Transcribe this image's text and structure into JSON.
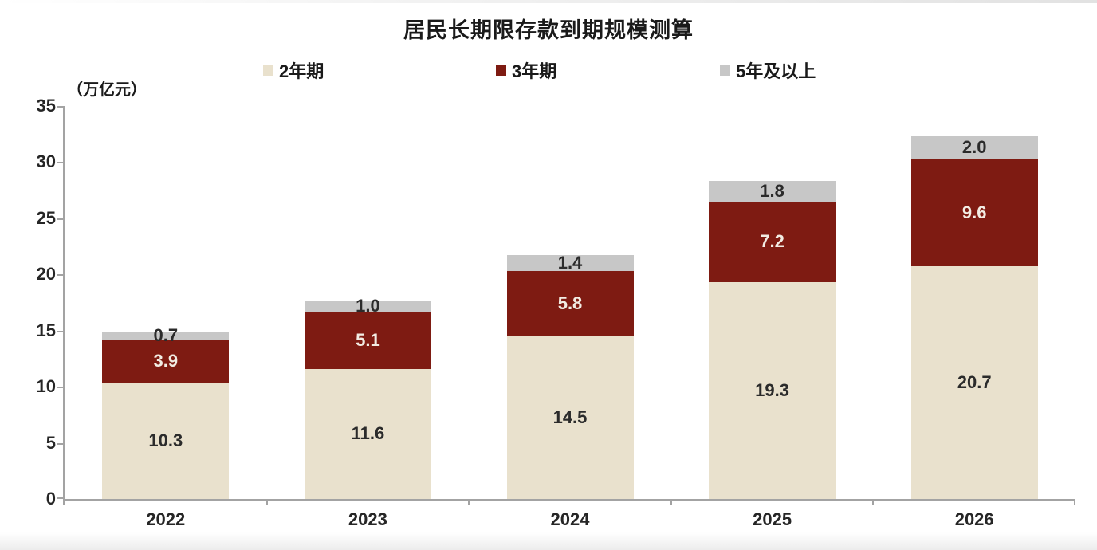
{
  "chart_data": {
    "type": "bar",
    "stacked": true,
    "title": "居民长期限存款到期规模测算",
    "unit_label": "（万亿元）",
    "categories": [
      "2022",
      "2023",
      "2024",
      "2025",
      "2026"
    ],
    "series": [
      {
        "name": "2年期",
        "color": "#E9E1CD",
        "label_color": "#2b2b2b",
        "values": [
          10.3,
          11.6,
          14.5,
          19.3,
          20.7
        ],
        "labels": [
          "10.3",
          "11.6",
          "14.5",
          "19.3",
          "20.7"
        ]
      },
      {
        "name": "3年期",
        "color": "#7E1B12",
        "label_color": "#F2ECE3",
        "values": [
          3.9,
          5.1,
          5.8,
          7.2,
          9.6
        ],
        "labels": [
          "3.9",
          "5.1",
          "5.8",
          "7.2",
          "9.6"
        ]
      },
      {
        "name": "5年及以上",
        "color": "#C7C7C7",
        "label_color": "#2b2b2b",
        "values": [
          0.7,
          1.0,
          1.4,
          1.8,
          2.0
        ],
        "labels": [
          "0.7",
          "1.0",
          "1.4",
          "1.8",
          "2.0"
        ]
      }
    ],
    "y_ticks": [
      0,
      5,
      10,
      15,
      20,
      25,
      30,
      35
    ],
    "ylim": [
      0,
      35
    ],
    "xlabel": "",
    "ylabel": "（万亿元）",
    "legend_position": "top",
    "grid": false,
    "axis_color": "#a3a3a3",
    "background_color": "#ffffff"
  }
}
